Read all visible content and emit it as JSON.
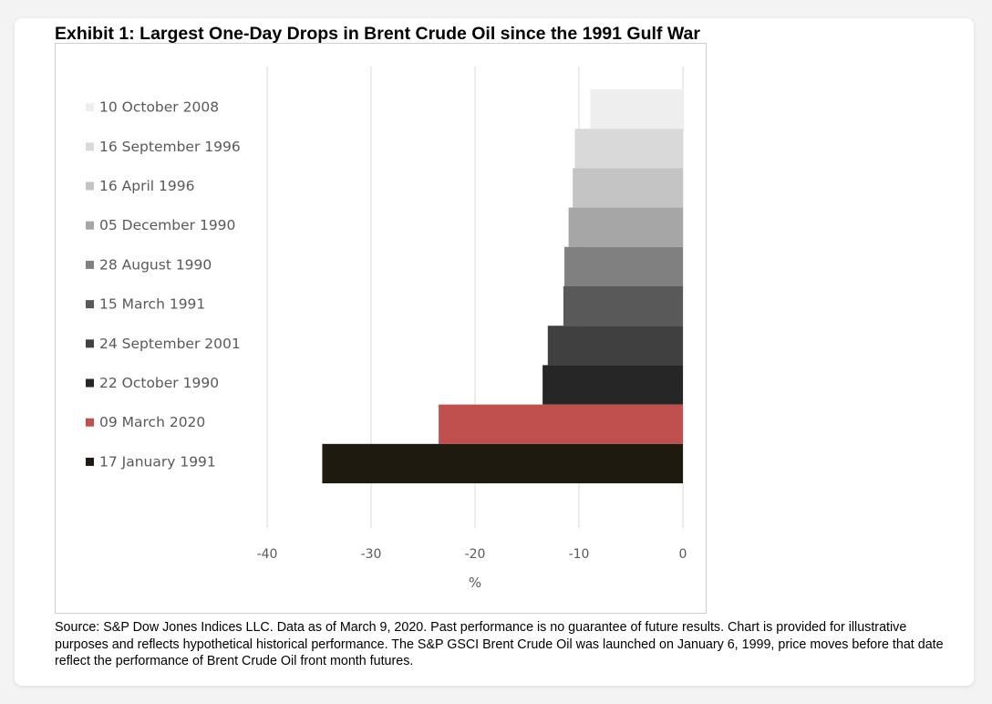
{
  "header": {
    "title": "Exhibit 1: Largest One-Day Drops in Brent Crude Oil since the 1991 Gulf War"
  },
  "footer": {
    "source": "Source: S&P Dow Jones Indices LLC. Data as of March 9, 2020. Past performance is no guarantee of future results. Chart is provided for illustrative purposes and reflects hypothetical historical performance. The S&P GSCI Brent Crude Oil was launched on January 6, 1999, price moves before that date reflect the performance of Brent Crude Oil front month futures."
  },
  "chart_data": {
    "type": "bar",
    "orientation": "horizontal",
    "title": "Exhibit 1: Largest One-Day Drops in Brent Crude Oil since the 1991 Gulf War",
    "xlabel": "%",
    "ylabel": "",
    "xlim": [
      -40,
      0
    ],
    "x_ticks": [
      "-40",
      "-30",
      "-20",
      "-10",
      "0"
    ],
    "grid": "vertical",
    "legend": "left",
    "categories": [
      "10 October 2008",
      "16 September 1996",
      "16 April 1996",
      "05 December 1990",
      "28 August 1990",
      "15 March 1991",
      "24 September 2001",
      "22 October 1990",
      "09 March 2020",
      "17 January 1991"
    ],
    "values": [
      -8.9,
      -10.4,
      -10.6,
      -11.0,
      -11.4,
      -11.5,
      -13.0,
      -13.5,
      -23.5,
      -34.7
    ],
    "colors": [
      "#eeeeee",
      "#d9d9d9",
      "#c4c4c4",
      "#a6a6a6",
      "#808080",
      "#595959",
      "#404040",
      "#262626",
      "#c0504d",
      "#1e1a10"
    ]
  }
}
